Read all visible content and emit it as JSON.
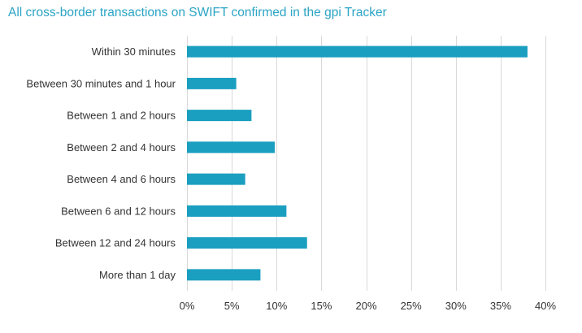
{
  "title": "All cross-border transactions on SWIFT confirmed in the gpi Tracker",
  "chart_data": {
    "type": "bar",
    "orientation": "horizontal",
    "title": "All cross-border transactions on SWIFT confirmed in the gpi Tracker",
    "xlabel": "",
    "ylabel": "",
    "categories": [
      "Within 30 minutes",
      "Between 30 minutes and 1 hour",
      "Between 1 and 2 hours",
      "Between 2 and 4 hours",
      "Between 4 and 6 hours",
      "Between 6 and 12 hours",
      "Between 12 and 24 hours",
      "More than 1 day"
    ],
    "values": [
      38.0,
      5.5,
      7.2,
      9.8,
      6.5,
      11.1,
      13.4,
      8.2
    ],
    "xlim": [
      0,
      40
    ],
    "xticks": [
      0,
      5,
      10,
      15,
      20,
      25,
      30,
      35,
      40
    ],
    "xtick_labels": [
      "0%",
      "5%",
      "10%",
      "15%",
      "20%",
      "25%",
      "30%",
      "35%",
      "40%"
    ],
    "grid": "vertical",
    "legend": "none",
    "bar_color": "#1a9fc0",
    "grid_color": "#d9d9d9"
  }
}
